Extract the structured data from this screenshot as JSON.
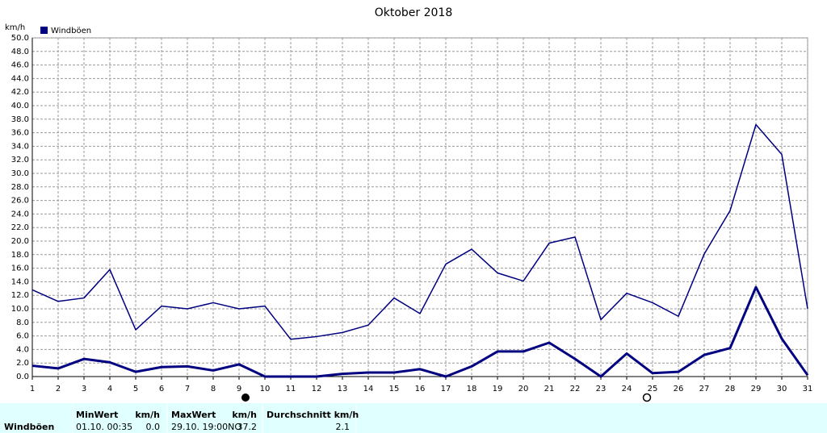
{
  "chart_data": {
    "type": "line",
    "title": "Oktober 2018",
    "y_label": "km/h",
    "categories": [
      "1",
      "2",
      "3",
      "4",
      "5",
      "6",
      "7",
      "8",
      "9",
      "10",
      "11",
      "12",
      "13",
      "14",
      "15",
      "16",
      "17",
      "18",
      "19",
      "20",
      "21",
      "22",
      "23",
      "24",
      "25",
      "26",
      "27",
      "28",
      "29",
      "30",
      "31"
    ],
    "series": [
      {
        "name": "Windböen",
        "color": "#000080",
        "values": [
          12.8,
          11.1,
          11.6,
          15.8,
          6.9,
          10.4,
          10.0,
          10.9,
          10.0,
          10.4,
          5.5,
          5.9,
          6.5,
          7.6,
          11.6,
          9.3,
          16.6,
          18.8,
          15.3,
          14.1,
          19.7,
          20.6,
          8.4,
          12.3,
          10.9,
          8.9,
          18.1,
          24.5,
          37.2,
          32.8,
          10.0
        ]
      },
      {
        "color": "#000080",
        "values": [
          1.6,
          1.2,
          2.6,
          2.1,
          0.7,
          1.4,
          1.5,
          0.9,
          1.8,
          0.0,
          0.0,
          0.0,
          0.4,
          0.6,
          0.6,
          1.1,
          0.0,
          1.5,
          3.7,
          3.7,
          5.0,
          2.6,
          0.0,
          3.4,
          0.5,
          0.7,
          3.2,
          4.2,
          13.2,
          5.6,
          0.2
        ]
      }
    ],
    "ylim": [
      0,
      50
    ],
    "yticks": [
      {
        "value": 0,
        "label": "0.0"
      },
      {
        "value": 2,
        "label": "2.0"
      },
      {
        "value": 4,
        "label": "4.0"
      },
      {
        "value": 6,
        "label": "6.0"
      },
      {
        "value": 8,
        "label": "8.0"
      },
      {
        "value": 10,
        "label": "10.0"
      },
      {
        "value": 12,
        "label": "12.0"
      },
      {
        "value": 14,
        "label": "14.0"
      },
      {
        "value": 16,
        "label": "16.0"
      },
      {
        "value": 18,
        "label": "18.0"
      },
      {
        "value": 20,
        "label": "20.0"
      },
      {
        "value": 22,
        "label": "22.0"
      },
      {
        "value": 24,
        "label": "24.0"
      },
      {
        "value": 26,
        "label": "26.0"
      },
      {
        "value": 28,
        "label": "28.0"
      },
      {
        "value": 30,
        "label": "30.0"
      },
      {
        "value": 32,
        "label": "32.0"
      },
      {
        "value": 34,
        "label": "34.0"
      },
      {
        "value": 36,
        "label": "36.0"
      },
      {
        "value": 38,
        "label": "38.0"
      },
      {
        "value": 40,
        "label": "40.0"
      },
      {
        "value": 42,
        "label": "42.0"
      },
      {
        "value": 44,
        "label": "44.0"
      },
      {
        "value": 46,
        "label": "46.0"
      },
      {
        "value": 48,
        "label": "48.0"
      },
      {
        "value": 50,
        "label": "50.0"
      }
    ],
    "grid": true
  },
  "stats": {
    "row_label": "Windböen",
    "columns": [
      {
        "title": "MinWert",
        "unit": "km/h",
        "time": "01.10.  00:35",
        "value": "0.0"
      },
      {
        "title": "MaxWert",
        "unit": "km/h",
        "time": "29.10.  19:00NO",
        "value": "37.2"
      },
      {
        "title": "Durchschnitt km/h",
        "value": "2.1"
      }
    ]
  }
}
